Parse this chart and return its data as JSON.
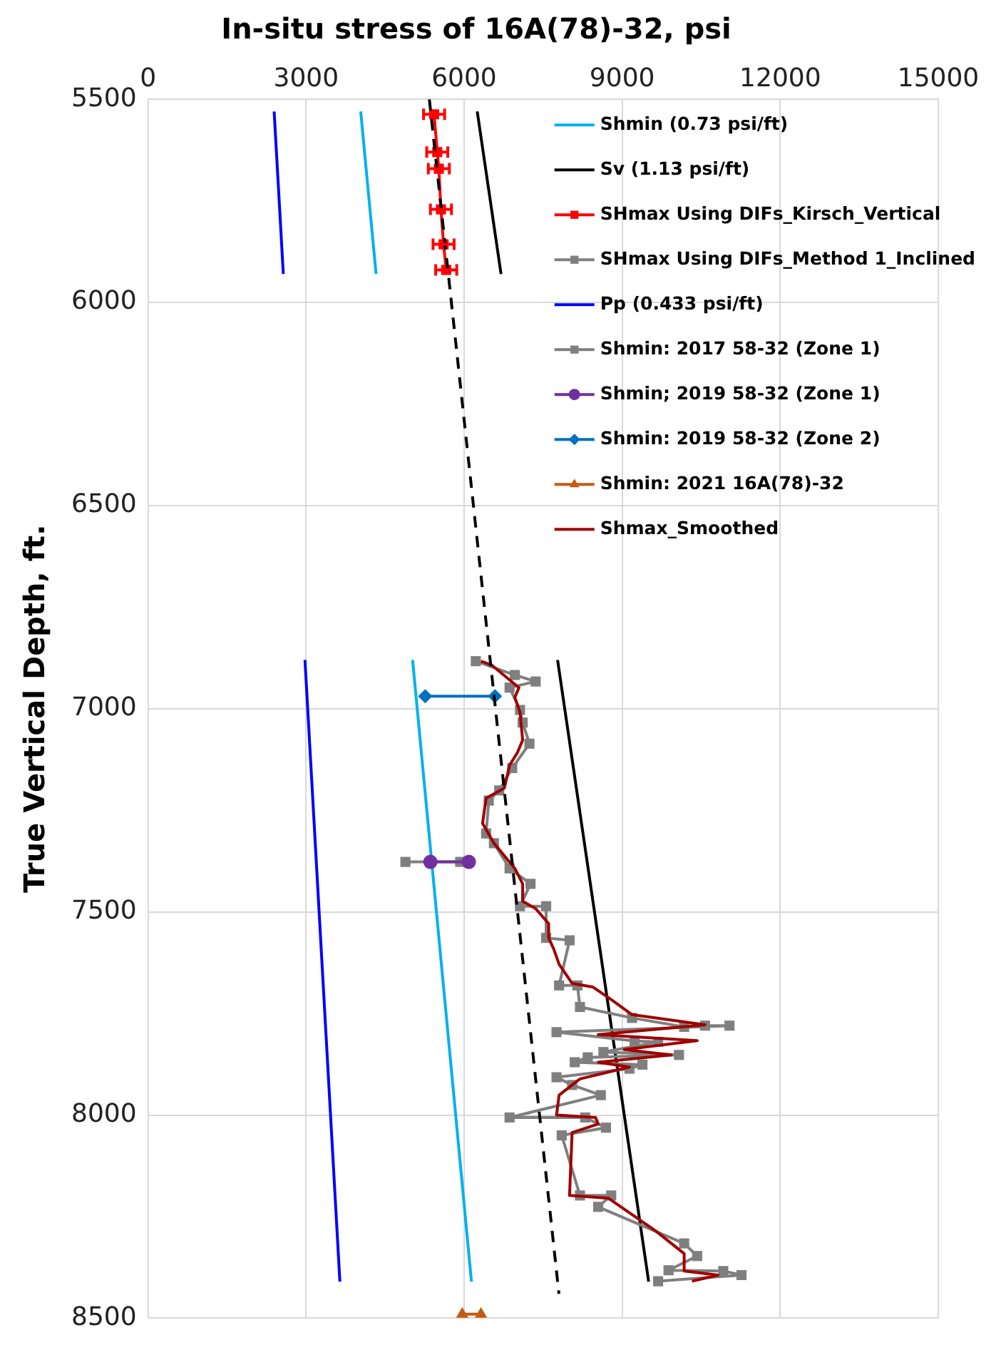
{
  "chart_data": {
    "type": "line",
    "title": "In-situ stress of 16A(78)-32, psi",
    "ylabel": "True Vertical Depth, ft.",
    "xlim": [
      0,
      15000
    ],
    "xticks": [
      0,
      3000,
      6000,
      9000,
      12000,
      15000
    ],
    "ylim": [
      8500,
      5500
    ],
    "yticks": [
      5500,
      6000,
      6500,
      7000,
      7500,
      8000,
      8500
    ],
    "grid": true,
    "legend": "top right",
    "series": [
      {
        "name": "Shmin (0.73 psi/ft)",
        "color": "#00b0f0",
        "marker": "none",
        "x": [
          4037,
          4329,
          null,
          5022,
          6139
        ],
        "values": [
          5530,
          5930,
          null,
          6880,
          8410
        ]
      },
      {
        "name": "Sv (1.13 psi/ft)",
        "color": "#000000",
        "marker": "none",
        "x": [
          6249,
          6701,
          null,
          7774,
          9503
        ],
        "values": [
          5530,
          5930,
          null,
          6880,
          8410
        ]
      },
      {
        "name": "SHmax Using DIFs_Kirsch_Vertical",
        "color": "#ff0000",
        "marker": "square",
        "x": [
          5430,
          5490,
          5520,
          5560,
          5610,
          5660
        ],
        "values": [
          5537,
          5630,
          5671,
          5771,
          5857,
          5920
        ],
        "xerrors": [
          200,
          200,
          200,
          200,
          200,
          200
        ]
      },
      {
        "name": "SHmax Using DIFs_Method 1_Inclined",
        "color": "#7f7f7f",
        "marker": "square",
        "x": [
          6222,
          6963,
          7358,
          6863,
          7061,
          7111,
          7240,
          6913,
          6666,
          6468,
          6418,
          6566,
          6863,
          7260,
          7061,
          7557,
          7557,
          8002,
          7803,
          8150,
          8199,
          9188,
          10177,
          10573,
          11037,
          7754,
          9237,
          9682,
          8644,
          10078,
          8347,
          8100,
          9385,
          9138,
          7754,
          8050,
          8595,
          6863,
          8298,
          8693,
          7853,
          8199,
          8792,
          8545,
          10177,
          10424,
          9880,
          10919,
          11265,
          9682
        ],
        "values": [
          6883,
          6917,
          6933,
          6948,
          7003,
          7034,
          7086,
          7146,
          7201,
          7226,
          7307,
          7331,
          7393,
          7431,
          7486,
          7486,
          7564,
          7570,
          7681,
          7681,
          7734,
          7761,
          7783,
          7780,
          7780,
          7796,
          7818,
          7820,
          7845,
          7852,
          7858,
          7870,
          7876,
          7886,
          7907,
          7926,
          7951,
          8006,
          8006,
          8031,
          8050,
          8198,
          8198,
          8226,
          8316,
          8347,
          8382,
          8384,
          8394,
          8409
        ]
      },
      {
        "name": "Pp (0.433 psi/ft)",
        "color": "#0000ff",
        "marker": "none",
        "x": [
          2394,
          2568,
          null,
          2979,
          3642
        ],
        "values": [
          5530,
          5930,
          null,
          6880,
          8410
        ]
      },
      {
        "name": "Shmin: 2017 58-32 (Zone 1)",
        "color": "#7f7f7f",
        "marker": "square",
        "x": [
          4886,
          5925
        ],
        "values": [
          7377,
          7377
        ]
      },
      {
        "name": "Shmin; 2019 58-32 (Zone 1)",
        "color": "#7030a0",
        "marker": "circle",
        "x": [
          5360,
          6090
        ],
        "values": [
          7377,
          7377
        ]
      },
      {
        "name": "Shmin: 2019 58-32 (Zone 2)",
        "color": "#0070c0",
        "marker": "diamond",
        "x": [
          5261,
          6586
        ],
        "values": [
          6969,
          6969
        ]
      },
      {
        "name": "Shmin: 2021 16A(78)-32",
        "color": "#c55a11",
        "marker": "triangle",
        "x": [
          5964,
          6320
        ],
        "values": [
          8490,
          8490
        ]
      },
      {
        "name": "Shmax_Smoothed",
        "color": "#a00000",
        "marker": "none",
        "x": [
          6320,
          6518,
          7041,
          6963,
          7061,
          7111,
          7012,
          6863,
          6765,
          6418,
          6350,
          6566,
          6963,
          7111,
          7111,
          7358,
          7605,
          7605,
          7703,
          7803,
          8050,
          8446,
          8792,
          9188,
          10573,
          8545,
          10424,
          9039,
          9930,
          8545,
          9138,
          8199,
          7803,
          7754,
          8495,
          8545,
          8050,
          8001,
          8743,
          9633,
          10177,
          10177,
          10820,
          10325
        ],
        "values": [
          6883,
          6892,
          6948,
          6972,
          7009,
          7077,
          7108,
          7139,
          7195,
          7220,
          7282,
          7331,
          7393,
          7431,
          7474,
          7492,
          7529,
          7564,
          7592,
          7629,
          7676,
          7685,
          7716,
          7753,
          7778,
          7802,
          7817,
          7839,
          7852,
          7870,
          7882,
          7911,
          7951,
          8000,
          8006,
          8022,
          8043,
          8198,
          8205,
          8285,
          8341,
          8384,
          8394,
          8409
        ]
      },
      {
        "color": "#000000",
        "marker": "none",
        "line_style": "dashed",
        "x": [
          5340,
          7800
        ],
        "values": [
          5500,
          8440
        ]
      }
    ]
  }
}
